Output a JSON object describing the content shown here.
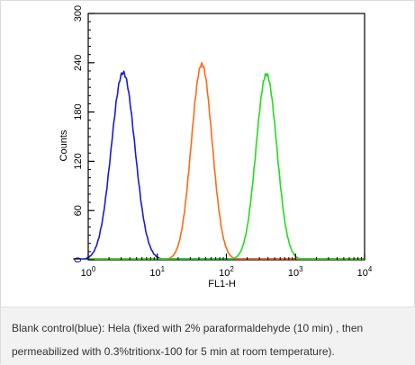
{
  "chart_data": {
    "type": "line",
    "title": "",
    "xlabel": "FL1-H",
    "ylabel": "Counts",
    "x_scale": "log",
    "xlim": [
      1,
      10000
    ],
    "ylim": [
      0,
      300
    ],
    "x_ticks": [
      {
        "value": 1,
        "base": "10",
        "exp": "0"
      },
      {
        "value": 10,
        "base": "10",
        "exp": "1"
      },
      {
        "value": 100,
        "base": "10",
        "exp": "2"
      },
      {
        "value": 1000,
        "base": "10",
        "exp": "3"
      },
      {
        "value": 10000,
        "base": "10",
        "exp": "4"
      }
    ],
    "y_ticks": [
      "0",
      "60",
      "120",
      "180",
      "240",
      "300"
    ],
    "series": [
      {
        "color": "#1a1ad6",
        "peak_x": 3.2,
        "peak_y": 228,
        "log_width": 0.17
      },
      {
        "color": "#ff6a13",
        "peak_x": 44,
        "peak_y": 238,
        "log_width": 0.15
      },
      {
        "color": "#22dd1a",
        "peak_x": 380,
        "peak_y": 226,
        "log_width": 0.15
      }
    ],
    "grid": false,
    "legend": "none"
  },
  "caption": {
    "line1": "Blank control(blue): Hela (fixed with 2% paraformaldehyde (10 min) , then",
    "line2": "permeabilized with 0.3%tritionx-100 for 5 min at room temperature)."
  }
}
